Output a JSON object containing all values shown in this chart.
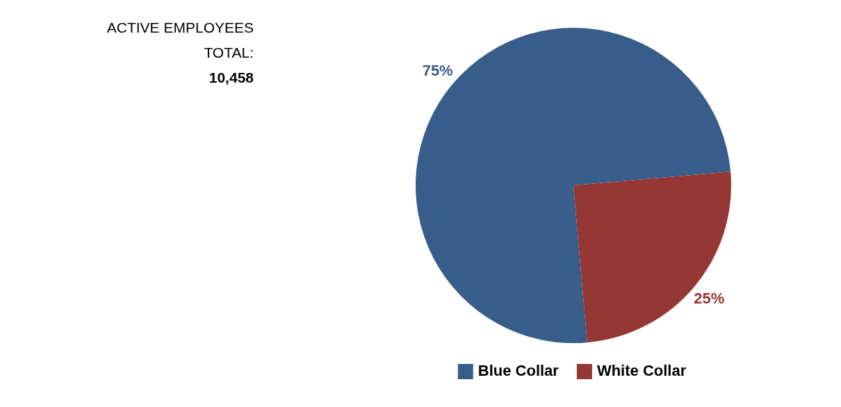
{
  "chart_data": {
    "type": "pie",
    "title": "ACTIVE EMPLOYEES",
    "annotations": [
      "TOTAL:",
      "10,458"
    ],
    "categories": [
      "Blue Collar",
      "White Collar"
    ],
    "values": [
      75,
      25
    ],
    "colors": [
      "#385d8a",
      "#953735"
    ],
    "value_labels": [
      "75%",
      "25%"
    ],
    "legend": "bottom"
  }
}
